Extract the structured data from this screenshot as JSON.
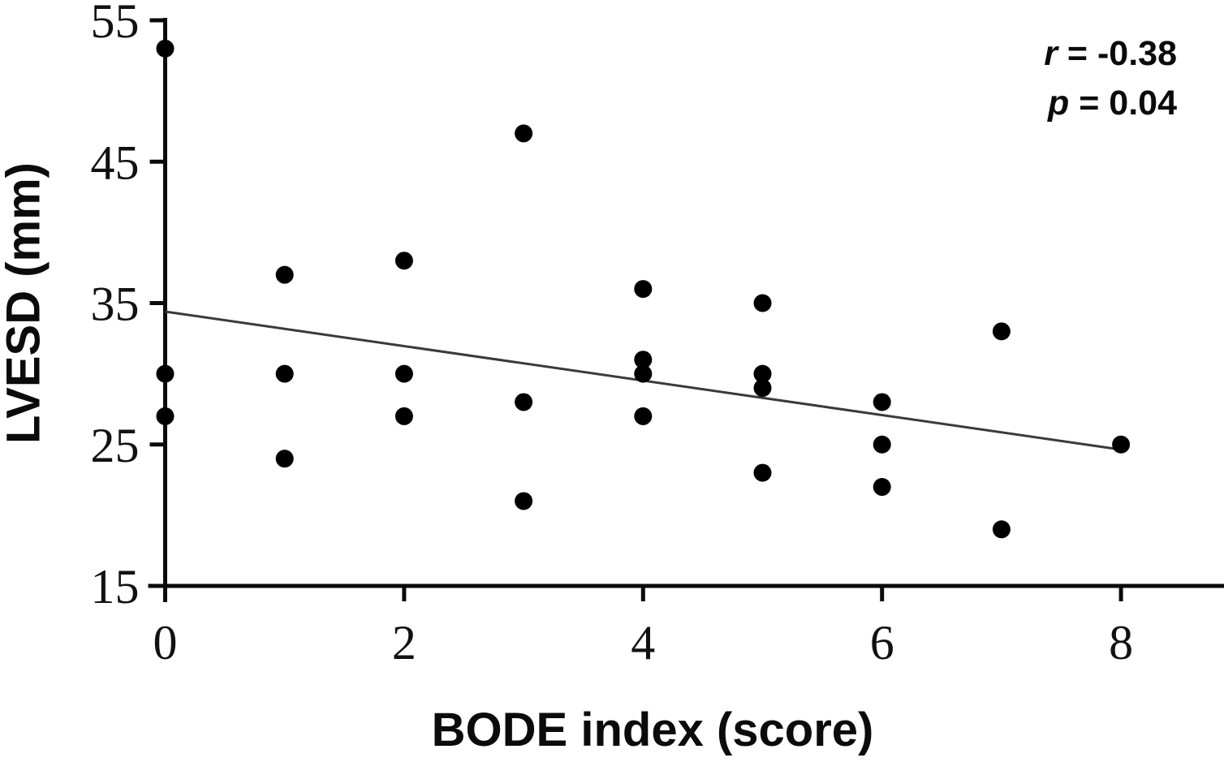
{
  "chart_data": {
    "type": "scatter",
    "title": "",
    "xlabel": "BODE index (score)",
    "ylabel": "LVESD (mm)",
    "xlim": [
      0,
      8.85
    ],
    "ylim": [
      15,
      55
    ],
    "xticks": [
      0,
      2,
      4,
      6,
      8
    ],
    "yticks": [
      15,
      25,
      35,
      45,
      55
    ],
    "grid": false,
    "legend": "none",
    "marker": {
      "shape": "circle",
      "color": "#000000",
      "radius_px": 11
    },
    "points": [
      {
        "x": 0,
        "y": 53
      },
      {
        "x": 0,
        "y": 30
      },
      {
        "x": 0,
        "y": 27
      },
      {
        "x": 1,
        "y": 37
      },
      {
        "x": 1,
        "y": 30
      },
      {
        "x": 1,
        "y": 24
      },
      {
        "x": 2,
        "y": 38
      },
      {
        "x": 2,
        "y": 30
      },
      {
        "x": 2,
        "y": 27
      },
      {
        "x": 3,
        "y": 47
      },
      {
        "x": 3,
        "y": 28
      },
      {
        "x": 3,
        "y": 21
      },
      {
        "x": 4,
        "y": 36
      },
      {
        "x": 4,
        "y": 31
      },
      {
        "x": 4,
        "y": 30
      },
      {
        "x": 4,
        "y": 27
      },
      {
        "x": 5,
        "y": 35
      },
      {
        "x": 5,
        "y": 30
      },
      {
        "x": 5,
        "y": 29
      },
      {
        "x": 5,
        "y": 23
      },
      {
        "x": 6,
        "y": 28
      },
      {
        "x": 6,
        "y": 25
      },
      {
        "x": 6,
        "y": 22
      },
      {
        "x": 7,
        "y": 33
      },
      {
        "x": 7,
        "y": 19
      },
      {
        "x": 8,
        "y": 25
      }
    ],
    "trendline": {
      "x1": 0,
      "y1": 34.4,
      "x2": 7.95,
      "y2": 24.7,
      "color": "#3a3a3a"
    },
    "axis_color": "#0b0b0b",
    "annotation": {
      "lines": [
        {
          "symbol": "r",
          "rest": " = -0.38"
        },
        {
          "symbol": "p",
          "rest": " = 0.04"
        }
      ]
    }
  }
}
